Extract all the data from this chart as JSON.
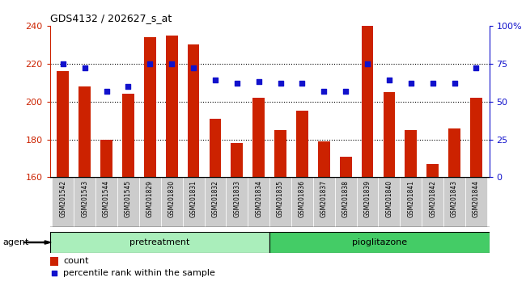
{
  "title": "GDS4132 / 202627_s_at",
  "samples": [
    "GSM201542",
    "GSM201543",
    "GSM201544",
    "GSM201545",
    "GSM201829",
    "GSM201830",
    "GSM201831",
    "GSM201832",
    "GSM201833",
    "GSM201834",
    "GSM201835",
    "GSM201836",
    "GSM201837",
    "GSM201838",
    "GSM201839",
    "GSM201840",
    "GSM201841",
    "GSM201842",
    "GSM201843",
    "GSM201844"
  ],
  "counts": [
    216,
    208,
    180,
    204,
    234,
    235,
    230,
    191,
    178,
    202,
    185,
    195,
    179,
    171,
    240,
    205,
    185,
    167,
    186,
    202
  ],
  "percentile_ranks": [
    75,
    72,
    57,
    60,
    75,
    75,
    72,
    64,
    62,
    63,
    62,
    62,
    57,
    57,
    75,
    64,
    62,
    62,
    62,
    72
  ],
  "pretreatment_count": 10,
  "ylim_left": [
    160,
    240
  ],
  "ylim_right": [
    0,
    100
  ],
  "yticks_left": [
    160,
    180,
    200,
    220,
    240
  ],
  "yticks_right": [
    0,
    25,
    50,
    75,
    100
  ],
  "ytick_labels_right": [
    "0",
    "25",
    "50",
    "75",
    "100%"
  ],
  "bar_color": "#cc2200",
  "dot_color": "#1111cc",
  "grid_color": "#000000",
  "plot_bg_color": "#ffffff",
  "fig_bg_color": "#ffffff",
  "tick_area_color": "#cccccc",
  "pretreatment_color": "#aaeebb",
  "pioglitazone_color": "#44cc66",
  "agent_label": "agent",
  "legend_count_label": "count",
  "legend_percentile_label": "percentile rank within the sample"
}
